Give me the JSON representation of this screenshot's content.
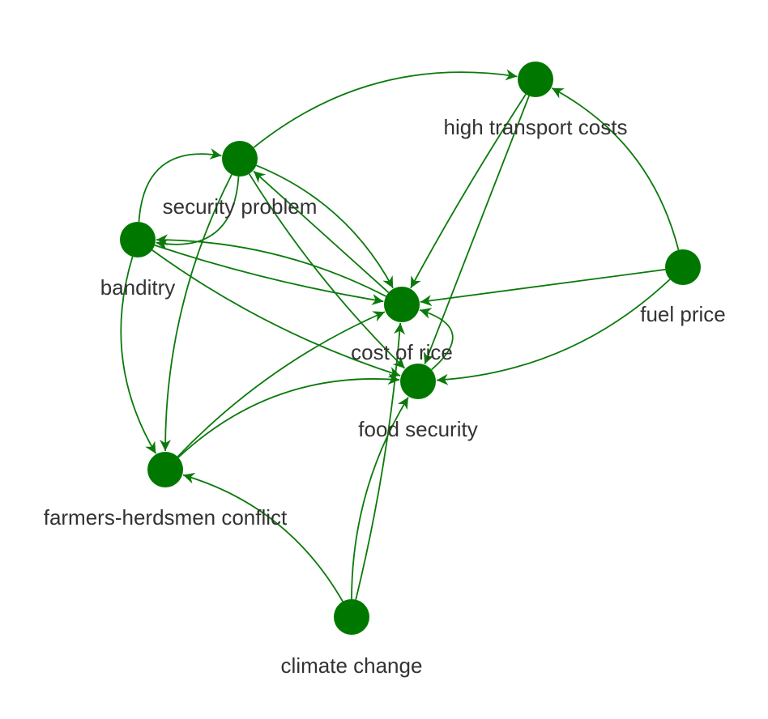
{
  "colors": {
    "node": "#007800",
    "edge": "#0a7a0a",
    "label": "#333333"
  },
  "nodes": [
    {
      "id": "high_transport_costs",
      "label": "high transport costs"
    },
    {
      "id": "security_problem",
      "label": "security problem"
    },
    {
      "id": "banditry",
      "label": "banditry"
    },
    {
      "id": "cost_of_rice",
      "label": "cost of rice"
    },
    {
      "id": "fuel_price",
      "label": "fuel price"
    },
    {
      "id": "food_security",
      "label": "food security"
    },
    {
      "id": "farmers_herdsmen_conflict",
      "label": "farmers-herdsmen conflict"
    },
    {
      "id": "climate_change",
      "label": "climate change"
    }
  ],
  "edges": [
    {
      "from": "security_problem",
      "to": "high_transport_costs"
    },
    {
      "from": "security_problem",
      "to": "banditry"
    },
    {
      "from": "banditry",
      "to": "security_problem"
    },
    {
      "from": "security_problem",
      "to": "cost_of_rice"
    },
    {
      "from": "security_problem",
      "to": "food_security"
    },
    {
      "from": "security_problem",
      "to": "farmers_herdsmen_conflict"
    },
    {
      "from": "cost_of_rice",
      "to": "security_problem"
    },
    {
      "from": "cost_of_rice",
      "to": "banditry"
    },
    {
      "from": "banditry",
      "to": "cost_of_rice"
    },
    {
      "from": "banditry",
      "to": "food_security"
    },
    {
      "from": "banditry",
      "to": "farmers_herdsmen_conflict"
    },
    {
      "from": "high_transport_costs",
      "to": "cost_of_rice"
    },
    {
      "from": "high_transport_costs",
      "to": "food_security"
    },
    {
      "from": "fuel_price",
      "to": "high_transport_costs"
    },
    {
      "from": "fuel_price",
      "to": "cost_of_rice"
    },
    {
      "from": "fuel_price",
      "to": "food_security"
    },
    {
      "from": "food_security",
      "to": "cost_of_rice"
    },
    {
      "from": "farmers_herdsmen_conflict",
      "to": "cost_of_rice"
    },
    {
      "from": "farmers_herdsmen_conflict",
      "to": "food_security"
    },
    {
      "from": "climate_change",
      "to": "farmers_herdsmen_conflict"
    },
    {
      "from": "climate_change",
      "to": "cost_of_rice"
    },
    {
      "from": "climate_change",
      "to": "food_security"
    }
  ]
}
